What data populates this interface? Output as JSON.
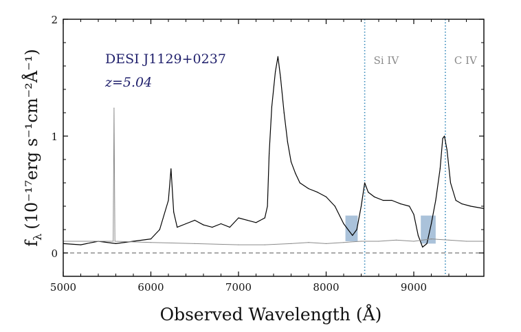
{
  "chart_data": {
    "type": "line",
    "xlabel": "Observed Wavelength (Å)",
    "ylabel": "f",
    "ylabel_subscript": "λ",
    "ylabel_units": "(10⁻¹⁷erg s⁻¹cm⁻²Å⁻¹)",
    "xlim": [
      5000,
      9800
    ],
    "ylim": [
      -0.2,
      2.0
    ],
    "x_ticks": [
      5000,
      6000,
      7000,
      8000,
      9000
    ],
    "x_tick_labels": [
      "5000",
      "6000",
      "7000",
      "8000",
      "9000"
    ],
    "y_ticks": [
      0,
      1,
      2
    ],
    "y_tick_labels": [
      "0",
      "1",
      "2"
    ],
    "zero_line": 0,
    "grid": false,
    "annotations": {
      "object_name": "DESI J1129+0237",
      "redshift_label": "z=5.04"
    },
    "emission_lines": [
      {
        "label": "Si IV",
        "x": 8440
      },
      {
        "label": "C IV",
        "x": 9360
      }
    ],
    "absorption_regions": [
      {
        "x": [
          8220,
          8360
        ],
        "y": [
          0.1,
          0.32
        ]
      },
      {
        "x": [
          9080,
          9250
        ],
        "y": [
          0.08,
          0.32
        ]
      }
    ],
    "series": [
      {
        "role": "flux",
        "color": "#000000",
        "x": [
          5000,
          5200,
          5400,
          5600,
          5800,
          6000,
          6100,
          6200,
          6230,
          6260,
          6300,
          6400,
          6500,
          6600,
          6700,
          6800,
          6900,
          7000,
          7100,
          7200,
          7300,
          7330,
          7350,
          7380,
          7420,
          7450,
          7480,
          7520,
          7560,
          7600,
          7650,
          7700,
          7800,
          7900,
          8000,
          8100,
          8200,
          8300,
          8350,
          8400,
          8440,
          8480,
          8550,
          8650,
          8750,
          8850,
          8950,
          9000,
          9050,
          9100,
          9150,
          9200,
          9250,
          9300,
          9330,
          9350,
          9380,
          9420,
          9480,
          9550,
          9650,
          9800
        ],
        "y": [
          0.08,
          0.07,
          0.1,
          0.08,
          0.1,
          0.12,
          0.2,
          0.45,
          0.72,
          0.35,
          0.22,
          0.25,
          0.28,
          0.24,
          0.22,
          0.25,
          0.22,
          0.3,
          0.28,
          0.26,
          0.3,
          0.4,
          0.85,
          1.25,
          1.55,
          1.68,
          1.5,
          1.2,
          0.95,
          0.78,
          0.68,
          0.6,
          0.55,
          0.52,
          0.48,
          0.4,
          0.25,
          0.15,
          0.2,
          0.4,
          0.6,
          0.52,
          0.48,
          0.45,
          0.45,
          0.42,
          0.4,
          0.33,
          0.15,
          0.05,
          0.08,
          0.25,
          0.45,
          0.72,
          0.98,
          1.0,
          0.88,
          0.6,
          0.45,
          0.42,
          0.4,
          0.38
        ]
      },
      {
        "role": "error",
        "color": "#8a8a8a",
        "x": [
          5000,
          5500,
          5570,
          5580,
          5590,
          6000,
          6500,
          7000,
          7300,
          7600,
          7800,
          8000,
          8200,
          8400,
          8600,
          8800,
          9000,
          9200,
          9400,
          9600,
          9800
        ],
        "y": [
          0.1,
          0.1,
          0.1,
          1.24,
          0.1,
          0.09,
          0.08,
          0.07,
          0.07,
          0.08,
          0.09,
          0.08,
          0.09,
          0.1,
          0.1,
          0.11,
          0.1,
          0.12,
          0.11,
          0.1,
          0.1
        ]
      }
    ]
  }
}
